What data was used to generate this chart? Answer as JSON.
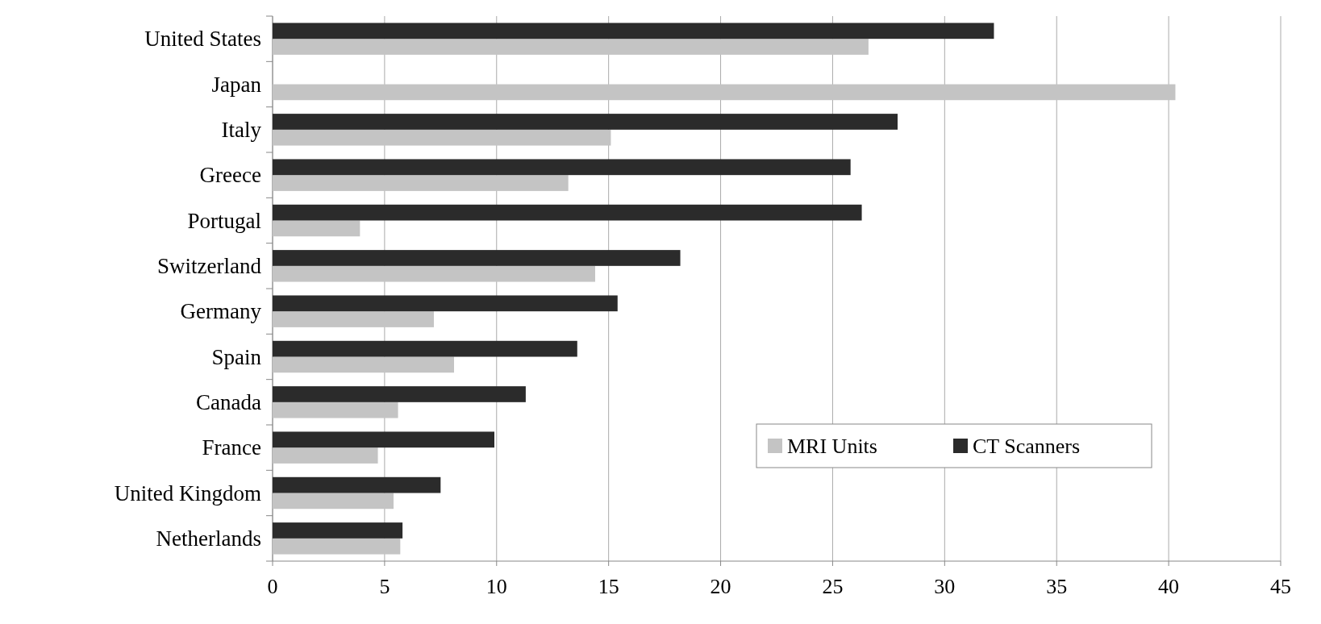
{
  "chart_data": {
    "type": "bar",
    "orientation": "horizontal",
    "categories": [
      "United States",
      "Japan",
      "Italy",
      "Greece",
      "Portugal",
      "Switzerland",
      "Germany",
      "Spain",
      "Canada",
      "France",
      "United Kingdom",
      "Netherlands"
    ],
    "series": [
      {
        "name": "MRI Units",
        "color": "#c4c4c4",
        "values": [
          26.6,
          40.3,
          15.1,
          13.2,
          3.9,
          14.4,
          7.2,
          8.1,
          5.6,
          4.7,
          5.4,
          5.7
        ]
      },
      {
        "name": "CT Scanners",
        "color": "#2b2b2b",
        "values": [
          32.2,
          null,
          27.9,
          25.8,
          26.3,
          18.2,
          15.4,
          13.6,
          11.3,
          9.9,
          7.5,
          5.8
        ]
      }
    ],
    "xlim": [
      0,
      45
    ],
    "xticks": [
      0,
      5,
      10,
      15,
      20,
      25,
      30,
      35,
      40,
      45
    ],
    "grid": "x",
    "legend": "bottom right"
  }
}
